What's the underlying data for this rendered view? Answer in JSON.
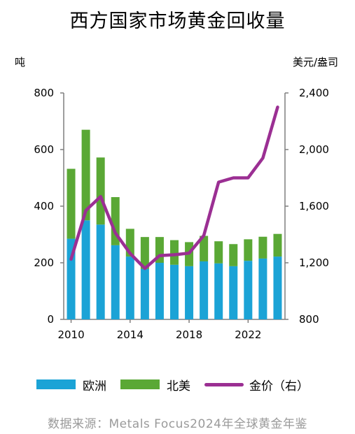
{
  "title": "西方国家市场黄金回收量",
  "left_unit": "吨",
  "right_unit": "美元/盎司",
  "source": "数据来源：Metals Focus2024年全球黄金年鉴",
  "colors": {
    "europe": "#1ba3d6",
    "north_america": "#5aa835",
    "price": "#9b2f93",
    "axis": "#7f7f7f"
  },
  "chart_data": {
    "type": "bar",
    "stacked": true,
    "categories": [
      "2010",
      "2011",
      "2012",
      "2013",
      "2014",
      "2015",
      "2016",
      "2017",
      "2018",
      "2019",
      "2020",
      "2021",
      "2022",
      "2023",
      "2024"
    ],
    "x_tick_labels": [
      "2010",
      "2014",
      "2018",
      "2022"
    ],
    "series": [
      {
        "name": "欧洲",
        "axis": "left",
        "values": [
          285,
          350,
          335,
          262,
          222,
          178,
          200,
          193,
          188,
          205,
          198,
          188,
          207,
          215,
          222
        ]
      },
      {
        "name": "北美",
        "axis": "left",
        "values": [
          247,
          320,
          237,
          170,
          98,
          113,
          91,
          87,
          85,
          90,
          78,
          78,
          76,
          77,
          80
        ]
      },
      {
        "name": "金价（右）",
        "type": "line",
        "axis": "right",
        "values": [
          1225,
          1570,
          1668,
          1411,
          1266,
          1160,
          1251,
          1257,
          1268,
          1393,
          1770,
          1800,
          1800,
          1940,
          2300
        ]
      }
    ],
    "y_left": {
      "ticks": [
        0,
        200,
        400,
        600,
        800
      ],
      "range": [
        0,
        800
      ]
    },
    "y_right": {
      "ticks": [
        "800",
        "1,200",
        "1,600",
        "2,000",
        "2,400"
      ],
      "range": [
        800,
        2400
      ]
    },
    "legend": "bottom"
  }
}
